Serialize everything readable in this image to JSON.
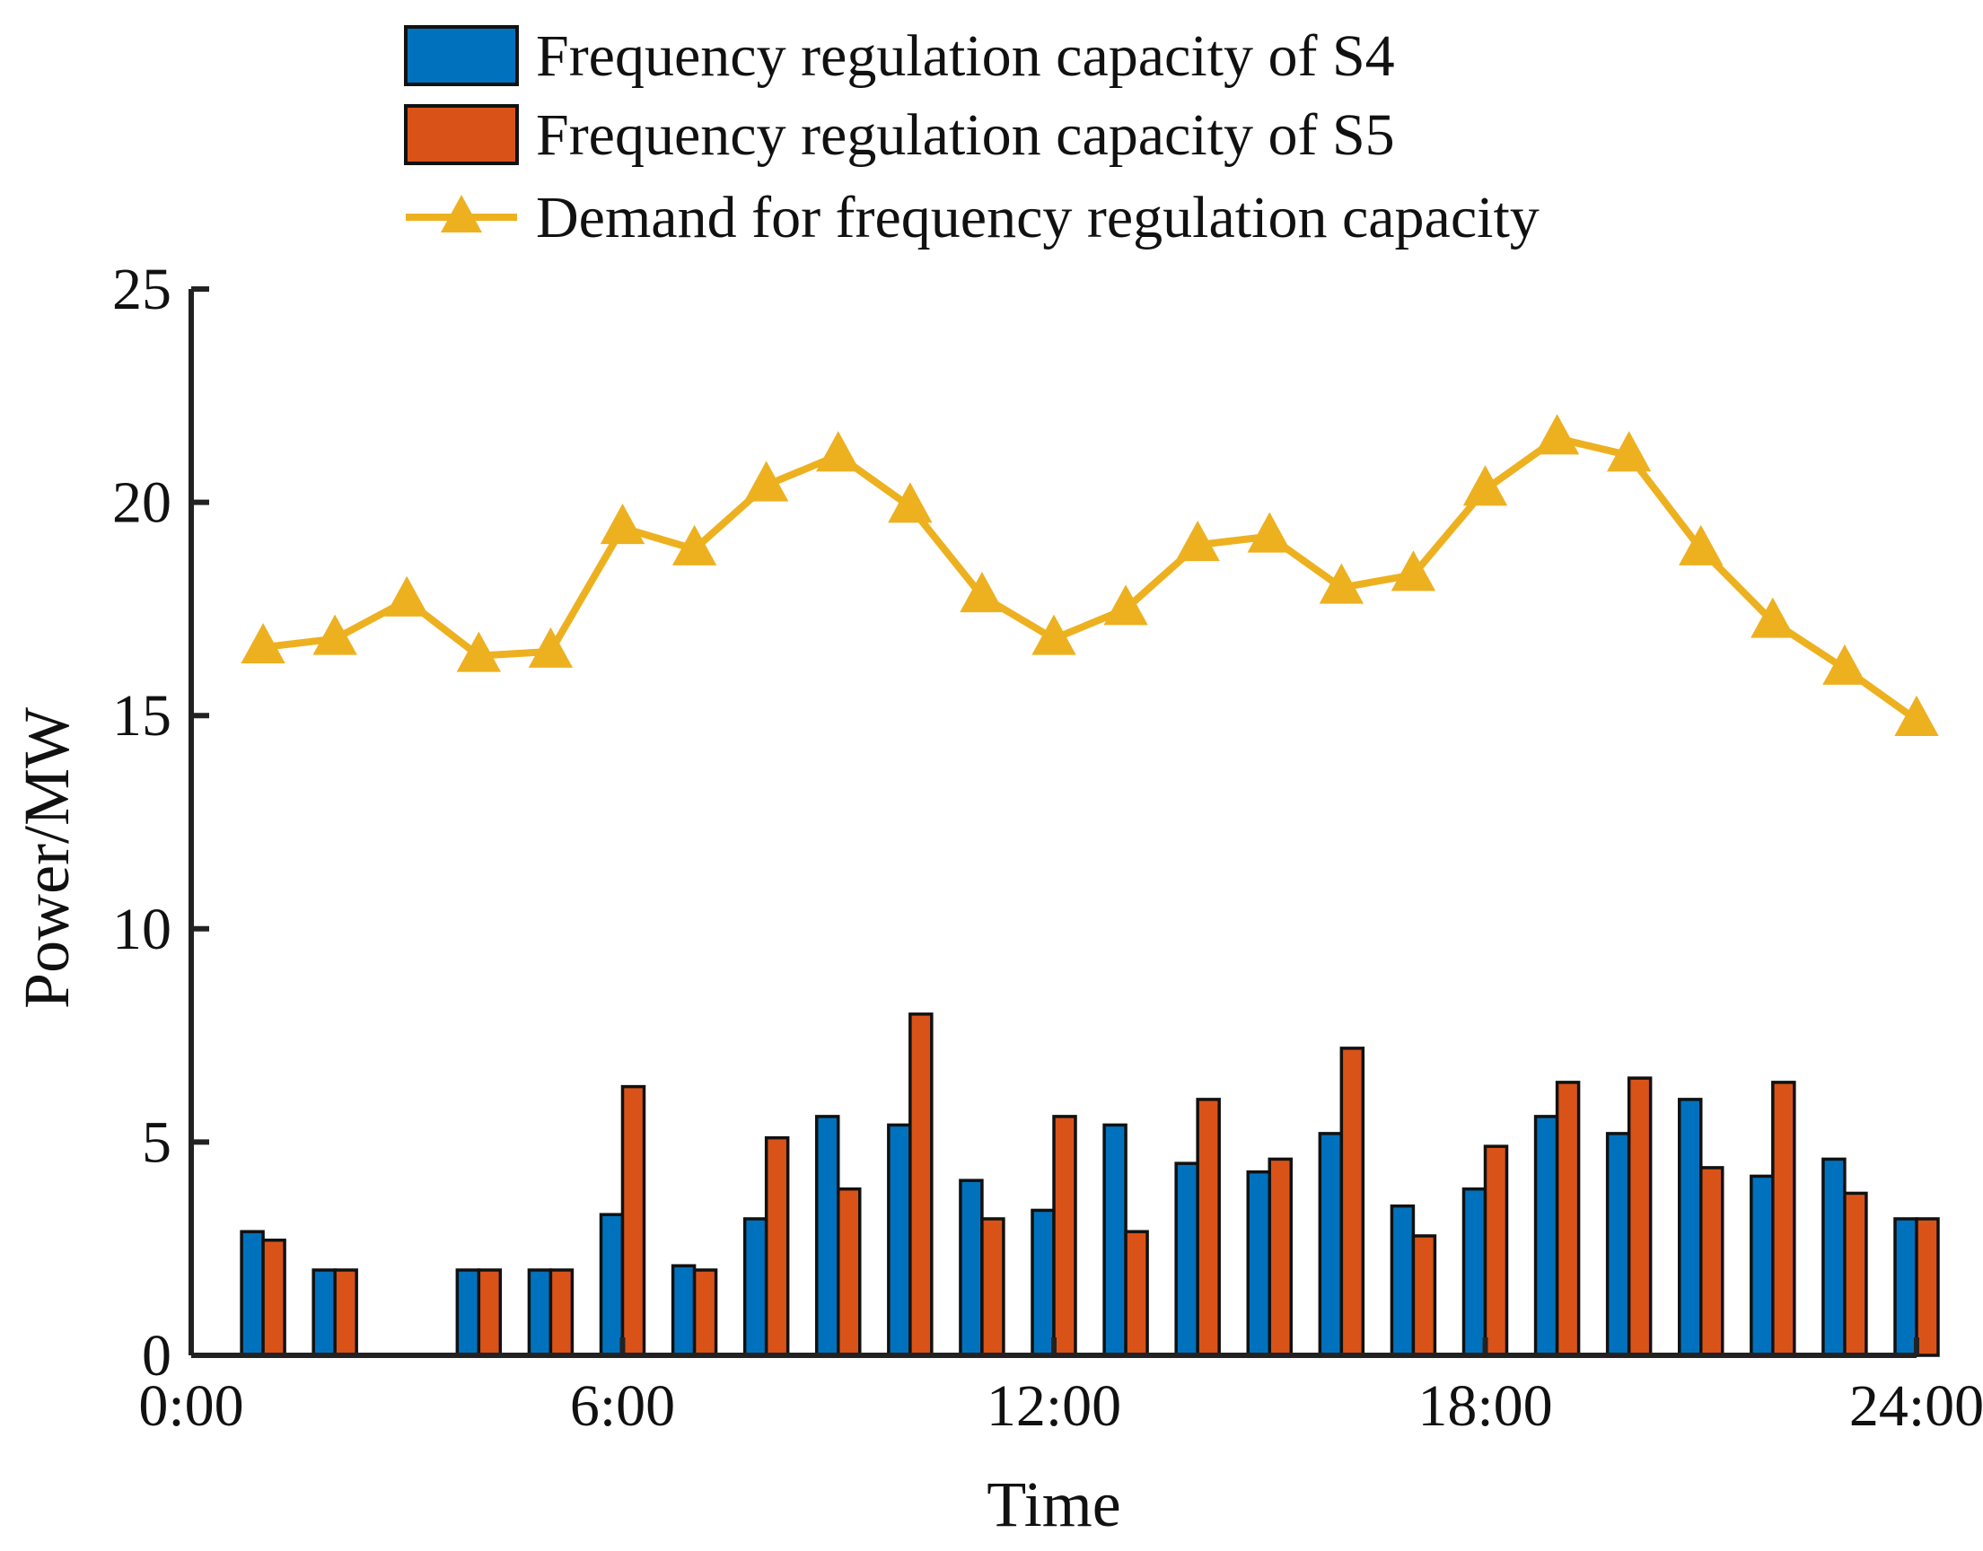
{
  "chart_data": {
    "type": "bar",
    "title": "",
    "xlabel": "Time",
    "ylabel": "Power/MW",
    "ylim": [
      0,
      25
    ],
    "xlim": [
      0,
      24
    ],
    "yticks": [
      "0",
      "5",
      "10",
      "15",
      "20",
      "25"
    ],
    "yticks_values": [
      0,
      5,
      10,
      15,
      20,
      25
    ],
    "xticks": [
      "0:00",
      "6:00",
      "12:00",
      "18:00",
      "24:00"
    ],
    "xticks_values": [
      0,
      6,
      12,
      18,
      24
    ],
    "categories": [
      1,
      2,
      3,
      4,
      5,
      6,
      7,
      8,
      9,
      10,
      11,
      12,
      13,
      14,
      15,
      16,
      17,
      18,
      19,
      20,
      21,
      22,
      23,
      24
    ],
    "legend_position": "top",
    "series": [
      {
        "name": "Frequency regulation capacity of S4",
        "kind": "bar",
        "color": "#0072BD",
        "values": [
          2.9,
          2.0,
          0,
          2.0,
          2.0,
          3.3,
          2.1,
          3.2,
          5.6,
          5.4,
          4.1,
          3.4,
          5.4,
          4.5,
          4.3,
          5.2,
          3.5,
          3.9,
          5.6,
          5.2,
          6.0,
          4.2,
          4.6,
          3.2
        ]
      },
      {
        "name": "Frequency regulation capacity of S5",
        "kind": "bar",
        "color": "#D95319",
        "values": [
          2.7,
          2.0,
          0,
          2.0,
          2.0,
          6.3,
          2.0,
          5.1,
          3.9,
          8.0,
          3.2,
          5.6,
          2.9,
          6.0,
          4.6,
          7.2,
          2.8,
          4.9,
          6.4,
          6.5,
          4.4,
          6.4,
          3.8,
          3.2
        ]
      },
      {
        "name": "Demand for frequency regulation capacity",
        "kind": "line",
        "marker": "triangle",
        "color": "#EDB120",
        "values": [
          16.6,
          16.8,
          17.7,
          16.4,
          16.5,
          19.4,
          18.9,
          20.4,
          21.1,
          19.9,
          17.8,
          16.8,
          17.5,
          19.0,
          19.2,
          18.0,
          18.3,
          20.3,
          21.5,
          21.1,
          18.9,
          17.2,
          16.1,
          14.9
        ]
      }
    ]
  }
}
